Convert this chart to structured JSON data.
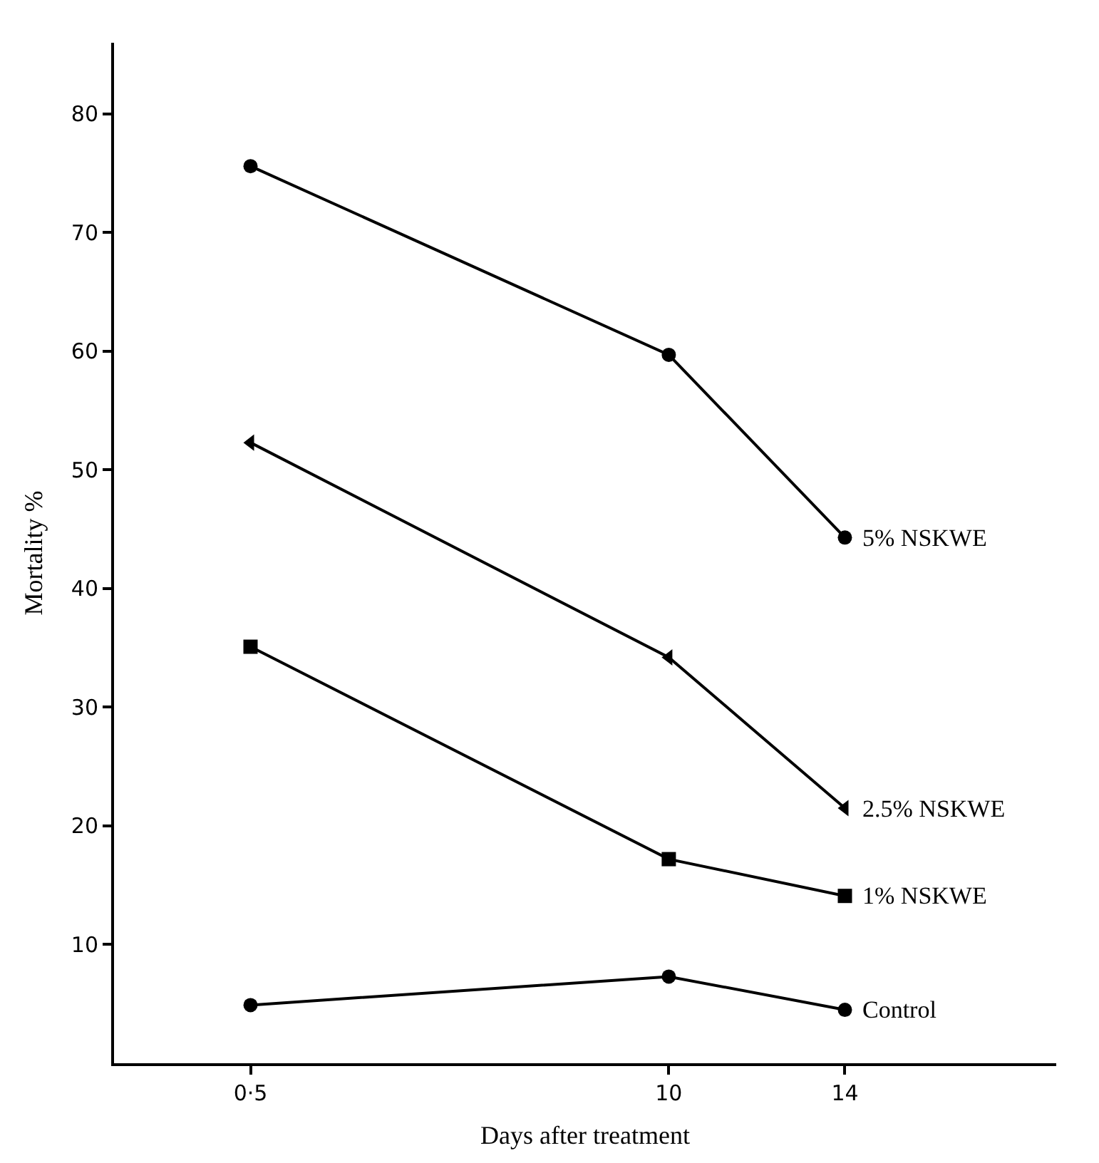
{
  "chart_data": {
    "type": "line",
    "xlabel": "Days after treatment",
    "ylabel": "Mortality %",
    "x": [
      0.5,
      10,
      14
    ],
    "series": [
      {
        "name": "5% NSKWE",
        "color": "#000000",
        "marker": "circle",
        "values": [
          75.6,
          59.7,
          44.3
        ]
      },
      {
        "name": "2.5% NSKWE",
        "color": "#000000",
        "marker": "triangle",
        "values": [
          52.3,
          34.2,
          21.5
        ]
      },
      {
        "name": "1% NSKWE",
        "color": "#000000",
        "marker": "square",
        "values": [
          35.1,
          17.2,
          14.1
        ]
      },
      {
        "name": "Control",
        "color": "#000000",
        "marker": "circle",
        "values": [
          4.9,
          7.3,
          4.5
        ]
      }
    ],
    "xlim": [
      -2.6,
      18.8
    ],
    "xticks": [
      {
        "value": 0.5,
        "label": "0·5"
      },
      10,
      14
    ],
    "ylim": [
      0,
      86
    ],
    "yticks": [
      10,
      20,
      30,
      40,
      50,
      60,
      70,
      80
    ],
    "legend": false,
    "line_style": "solid"
  }
}
